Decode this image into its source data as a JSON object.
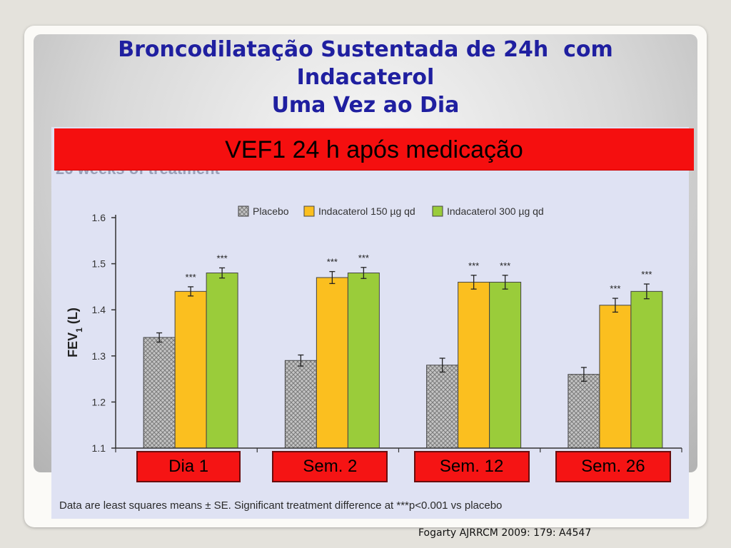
{
  "slide": {
    "title_lines": [
      "Broncodilatação Sustentada de 24h  com",
      "Indacaterol",
      "Uma Vez ao Dia"
    ],
    "banner": "VEF1 24 h após medicação",
    "figure_header_partial": "26 weeks of treatment",
    "citation": "Fogarty AJRRCM 2009: 179: A4547"
  },
  "chart_data": {
    "type": "bar",
    "ylabel": "FEV",
    "ylabel_subscript": "1",
    "ylabel_unit": " (L)",
    "ylim": [
      1.1,
      1.6
    ],
    "yticks": [
      "1.1",
      "1.2",
      "1.3",
      "1.4",
      "1.5",
      "1.6"
    ],
    "categories": [
      "Dia 1",
      "Sem. 2",
      "Sem. 12",
      "Sem. 26"
    ],
    "series": [
      {
        "name": "Placebo",
        "values": [
          1.34,
          1.29,
          1.28,
          1.26
        ],
        "errors": [
          0.01,
          0.012,
          0.015,
          0.015
        ],
        "sig": [
          "",
          "",
          "",
          ""
        ],
        "color": "#b8b8b8",
        "pattern": "crosshatch"
      },
      {
        "name": "Indacaterol 150 µg qd",
        "values": [
          1.44,
          1.47,
          1.46,
          1.41
        ],
        "errors": [
          0.01,
          0.013,
          0.015,
          0.015
        ],
        "sig": [
          "***",
          "***",
          "***",
          "***"
        ],
        "color": "#fbbf1f"
      },
      {
        "name": "Indacaterol 300 µg qd",
        "values": [
          1.48,
          1.48,
          1.46,
          1.44
        ],
        "errors": [
          0.011,
          0.012,
          0.015,
          0.016
        ],
        "sig": [
          "***",
          "***",
          "***",
          "***"
        ],
        "color": "#9acc3a"
      }
    ],
    "legend_position": "top",
    "footnote": "Data are least squares means ± SE. Significant treatment difference at ***p<0.001 vs placebo",
    "colors": {
      "axis": "#333333",
      "bar_outline": "#444444",
      "category_box": "#f51414"
    }
  }
}
